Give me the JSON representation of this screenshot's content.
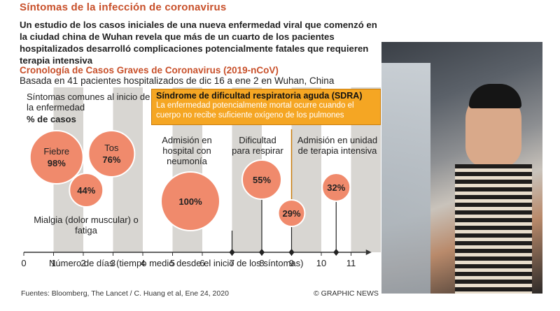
{
  "header": {
    "title": "Síntomas de la infección de coronavirus",
    "intro": "Un estudio de los casos iniciales de una nueva enfermedad viral que comenzó en la ciudad china de Wuhan revela que más de un cuarto de los pacientes hospitalizados desarrolló complicaciones potencialmente fatales que requieren terapia intensiva"
  },
  "timeline": {
    "title": "Cronología de Casos Graves de Coronavirus (2019-nCoV)",
    "subtitle": "Basada en 41 pacientes hospitalizados de dic 16 a ene 2 en Wuhan, China",
    "symptoms_title": "Síntomas comunes al inicio de la enfermedad",
    "symptoms_unit": "% de casos",
    "sdra_title": "Síndrome de dificultad respiratoria aguda (SDRA)",
    "sdra_text": "La enfermedad potencialmente mortal ocurre cuando el cuerpo no recibe suficiente oxígeno de los pulmones",
    "xlabel": "Número de días (tiempo medio desde el inicio de los síntomas)"
  },
  "chart_data": {
    "type": "scatter",
    "x_ticks": [
      "0",
      "1",
      "2",
      "3",
      "4",
      "5",
      "6",
      "7",
      "8",
      "9",
      "10",
      "11"
    ],
    "xlim": [
      0,
      11
    ],
    "bubbles": [
      {
        "label": "Fiebre",
        "value": "98%",
        "pct": 98
      },
      {
        "label": "Tos",
        "value": "76%",
        "pct": 76
      },
      {
        "label": "Mialgia (dolor muscular) o fatiga",
        "value": "44%",
        "pct": 44
      },
      {
        "label": "Admisión en hospital con neumonía",
        "value": "100%",
        "pct": 100,
        "day": 7
      },
      {
        "label": "Dificultad para respirar",
        "value": "55%",
        "pct": 55,
        "day": 8
      },
      {
        "label": "SDRA",
        "value": "29%",
        "pct": 29,
        "day": 9
      },
      {
        "label": "Admisión en unidad de terapia intensiva",
        "value": "32%",
        "pct": 32,
        "day": 10.5
      }
    ]
  },
  "footer": {
    "source": "Fuentes: Bloomberg, The Lancet / C. Huang et al, Ene 24, 2020",
    "credit": "© GRAPHIC NEWS"
  },
  "colors": {
    "accent": "#c8502a",
    "bubble": "#f08a6c",
    "highlight": "#f5a623",
    "band": "#d8d6d2"
  }
}
